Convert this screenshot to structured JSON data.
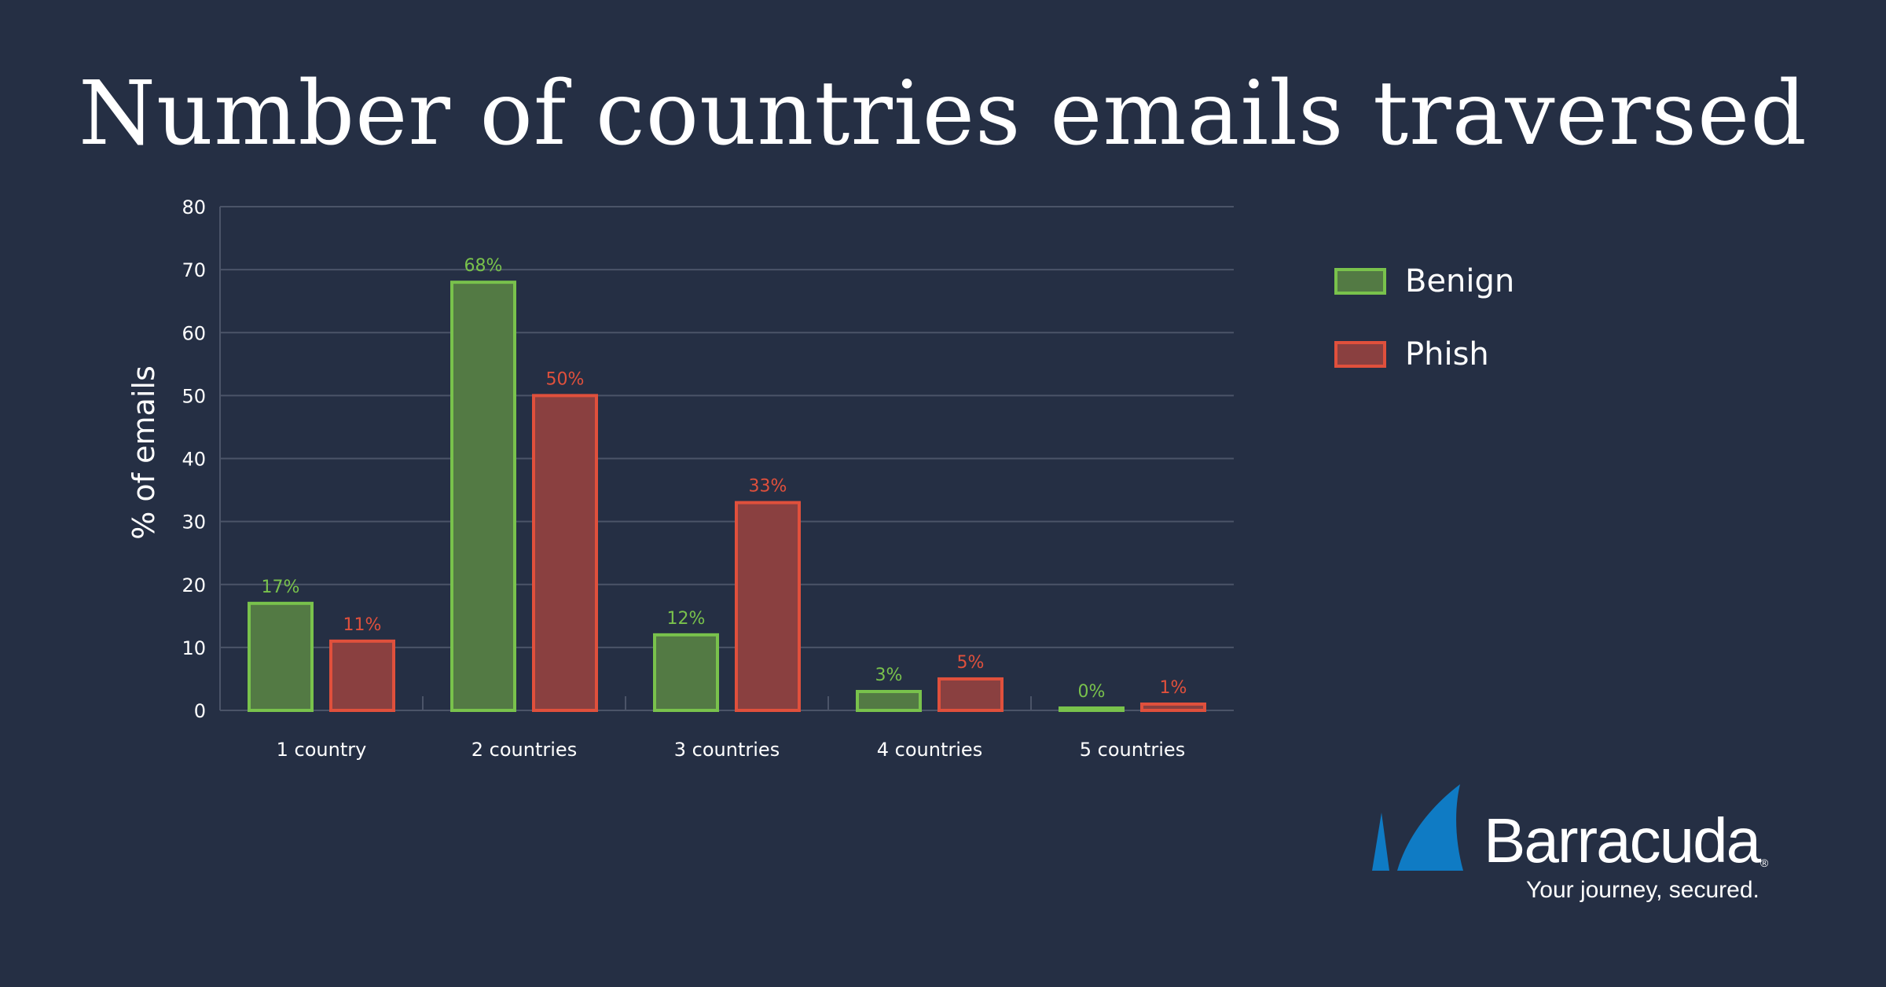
{
  "colors": {
    "background": "#252f44",
    "benign_fill": "#537a44",
    "benign_border": "#79c24c",
    "phish_fill": "#8a4040",
    "phish_border": "#e0503c",
    "grid": "#4b5468",
    "brand_blue": "#0f7bc4"
  },
  "chart_data": {
    "type": "bar",
    "title": "Number of countries emails traversed",
    "ylabel": "% of emails",
    "xlabel": "",
    "ylim": [
      0,
      80
    ],
    "yticks": [
      0,
      10,
      20,
      30,
      40,
      50,
      60,
      70,
      80
    ],
    "grid": true,
    "legend_position": "right",
    "categories": [
      "1 country",
      "2 countries",
      "3 countries",
      "4 countries",
      "5 countries"
    ],
    "series": [
      {
        "name": "Benign",
        "values": [
          17,
          68,
          12,
          3,
          0
        ],
        "labels": [
          "17%",
          "68%",
          "12%",
          "3%",
          "0%"
        ]
      },
      {
        "name": "Phish",
        "values": [
          11,
          50,
          33,
          5,
          1
        ],
        "labels": [
          "11%",
          "50%",
          "33%",
          "5%",
          "1%"
        ]
      }
    ]
  },
  "brand": {
    "name": "Barracuda",
    "registered_mark": "®",
    "tagline": "Your journey, secured."
  }
}
